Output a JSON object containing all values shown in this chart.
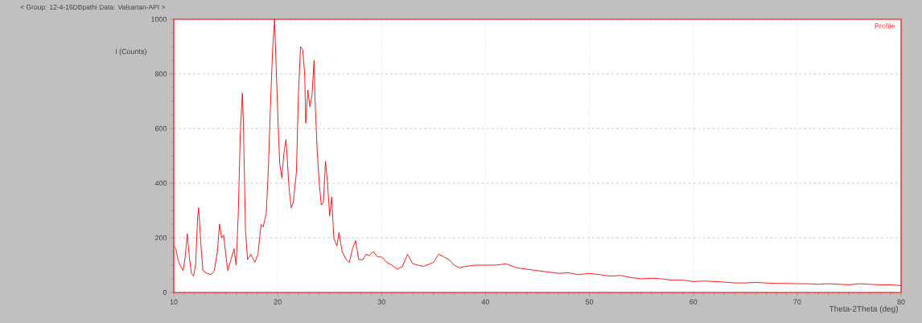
{
  "chart_data": {
    "type": "line",
    "title": "< Group: 12-4-16DBpathi   Data: Valsartan-API >",
    "xlabel": "Theta-2Theta (deg)",
    "ylabel": "I (Counts)",
    "x": [
      10.0,
      10.2,
      10.4,
      10.6,
      10.9,
      11.1,
      11.3,
      11.5,
      11.7,
      11.9,
      12.1,
      12.3,
      12.4,
      12.6,
      12.8,
      13.2,
      13.6,
      13.9,
      14.2,
      14.4,
      14.6,
      14.8,
      15.0,
      15.2,
      15.5,
      15.8,
      16.0,
      16.2,
      16.4,
      16.6,
      16.7,
      16.9,
      17.1,
      17.4,
      17.8,
      18.1,
      18.4,
      18.6,
      18.9,
      19.1,
      19.3,
      19.5,
      19.7,
      19.9,
      20.1,
      20.2,
      20.4,
      20.6,
      20.8,
      20.9,
      21.1,
      21.3,
      21.5,
      21.8,
      22.0,
      22.2,
      22.4,
      22.6,
      22.7,
      22.9,
      23.1,
      23.3,
      23.5,
      23.6,
      23.8,
      24.0,
      24.2,
      24.4,
      24.6,
      24.8,
      25.0,
      25.2,
      25.4,
      25.7,
      25.9,
      26.2,
      26.6,
      26.9,
      27.2,
      27.5,
      27.8,
      28.2,
      28.5,
      28.8,
      29.2,
      29.6,
      30.0,
      30.5,
      31,
      31.5,
      32,
      32.5,
      33,
      34,
      35,
      35.5,
      36,
      36.5,
      37,
      37.5,
      38,
      39,
      40,
      41,
      42,
      43,
      44,
      45,
      46,
      47,
      48,
      49,
      50,
      51,
      52,
      53,
      54,
      55,
      56,
      57,
      58,
      59,
      60,
      61,
      62,
      63,
      64,
      65,
      66,
      67,
      68,
      69,
      70,
      71,
      72,
      73,
      74,
      75,
      76,
      77,
      78,
      79,
      80
    ],
    "series": [
      {
        "name": "Profile",
        "color": "#ff0000",
        "values": [
          170,
          160,
          120,
          100,
          80,
          130,
          215,
          130,
          70,
          60,
          100,
          280,
          310,
          180,
          80,
          70,
          65,
          80,
          150,
          250,
          200,
          210,
          140,
          80,
          120,
          160,
          100,
          280,
          580,
          730,
          620,
          230,
          120,
          140,
          110,
          140,
          250,
          240,
          290,
          450,
          680,
          880,
          1000,
          770,
          560,
          470,
          420,
          510,
          560,
          500,
          380,
          310,
          330,
          440,
          730,
          900,
          890,
          800,
          620,
          740,
          680,
          720,
          850,
          700,
          520,
          400,
          320,
          330,
          480,
          400,
          280,
          350,
          200,
          170,
          220,
          150,
          120,
          110,
          160,
          190,
          120,
          120,
          140,
          135,
          150,
          130,
          130,
          110,
          100,
          85,
          95,
          140,
          105,
          95,
          110,
          140,
          130,
          120,
          100,
          90,
          95,
          100,
          100,
          100,
          105,
          90,
          85,
          80,
          75,
          70,
          72,
          65,
          70,
          65,
          60,
          62,
          55,
          50,
          52,
          50,
          45,
          45,
          40,
          42,
          40,
          38,
          35,
          35,
          37,
          35,
          33,
          33,
          32,
          32,
          30,
          32,
          30,
          28,
          32,
          30,
          28,
          28,
          25
        ]
      }
    ],
    "xlim": [
      10,
      80
    ],
    "ylim": [
      0,
      1000
    ],
    "xticks": [
      10,
      20,
      30,
      40,
      50,
      60,
      70,
      80
    ],
    "yticks": [
      0,
      200,
      400,
      600,
      800,
      1000
    ],
    "grid": true,
    "legend": "top right"
  }
}
